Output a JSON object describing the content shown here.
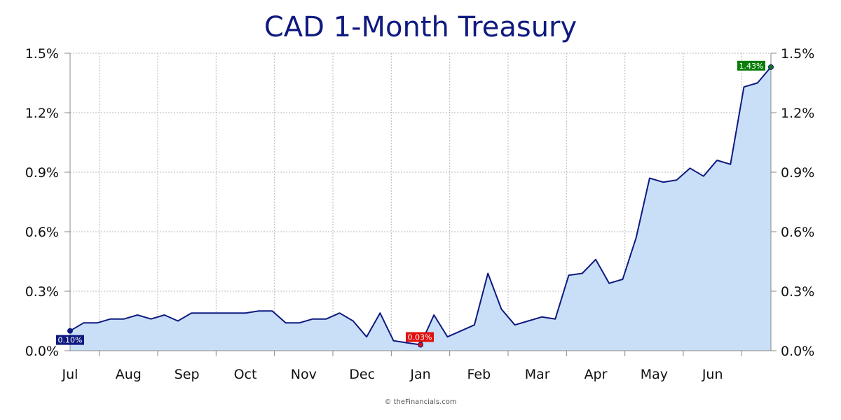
{
  "chart_data": {
    "type": "area",
    "title": "CAD 1-Month Treasury",
    "credit": "© theFinancials.com",
    "xlabel": "",
    "ylabel": "",
    "x_ticks": [
      "Jul",
      "Aug",
      "Sep",
      "Oct",
      "Nov",
      "Dec",
      "Jan",
      "Feb",
      "Mar",
      "Apr",
      "May",
      "Jun"
    ],
    "y_ticks": [
      "0.0%",
      "0.3%",
      "0.6%",
      "0.9%",
      "1.2%",
      "1.5%"
    ],
    "ylim": [
      0,
      1.5
    ],
    "grid": true,
    "y_axis_both_sides": true,
    "colors": {
      "line": "#0f1a80",
      "fill": "#c9dff7",
      "grid": "#b8b8b8",
      "start_label": "#0f1a80",
      "low_label": "#e01010",
      "end_label": "#0a7d0a"
    },
    "series": [
      {
        "values": [
          0.1,
          0.14,
          0.14,
          0.16,
          0.16,
          0.18,
          0.16,
          0.18,
          0.15,
          0.19,
          0.19,
          0.19,
          0.19,
          0.19,
          0.2,
          0.2,
          0.14,
          0.14,
          0.16,
          0.16,
          0.19,
          0.15,
          0.07,
          0.19,
          0.05,
          0.04,
          0.03,
          0.18,
          0.07,
          0.1,
          0.13,
          0.39,
          0.21,
          0.13,
          0.15,
          0.17,
          0.16,
          0.38,
          0.39,
          0.46,
          0.34,
          0.36,
          0.57,
          0.87,
          0.85,
          0.86,
          0.92,
          0.88,
          0.96,
          0.94,
          1.33,
          1.35,
          1.43
        ]
      }
    ],
    "annotations": [
      {
        "index": 0,
        "text": "0.10%",
        "kind": "start"
      },
      {
        "index": 26,
        "text": "0.03%",
        "kind": "low"
      },
      {
        "index": 52,
        "text": "1.43%",
        "kind": "end"
      }
    ]
  }
}
